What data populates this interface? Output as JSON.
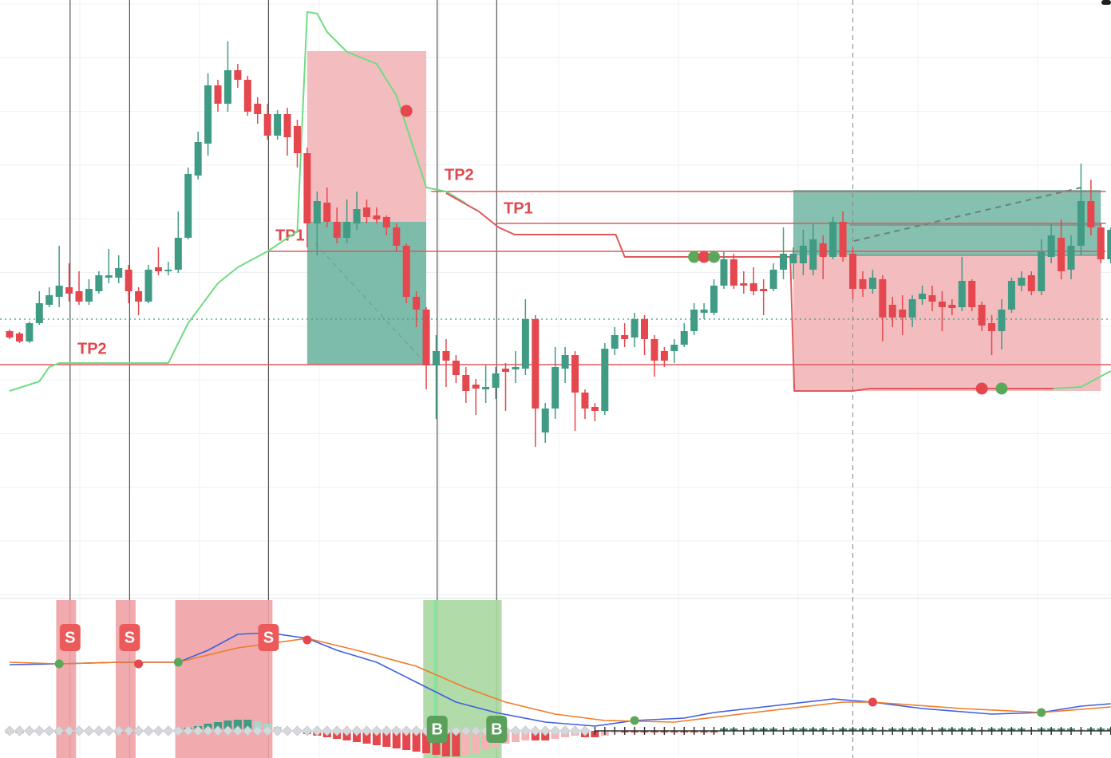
{
  "chart_data": {
    "type": "candlestick",
    "up_color": "#3f9b84",
    "down_color": "#e4474d",
    "ylim": [
      0,
      750
    ],
    "open": [
      335,
      332,
      322,
      345,
      368,
      378,
      390,
      385,
      372,
      385,
      402,
      402,
      412,
      385,
      372,
      415,
      410,
      412,
      452,
      530,
      570,
      643,
      620,
      662,
      650,
      620,
      607,
      580,
      607,
      592,
      558,
      470,
      496,
      472,
      452,
      470,
      490,
      480,
      478,
      465,
      442,
      378,
      362,
      292,
      310,
      298,
      280,
      268,
      262,
      264,
      288,
      287,
      288,
      350,
      208,
      238,
      288,
      305,
      258,
      240,
      235,
      313,
      330,
      327,
      350,
      325,
      310,
      310,
      318,
      335,
      358,
      358,
      392,
      425,
      395,
      395,
      388,
      388,
      412,
      420,
      420,
      412,
      445,
      428,
      472,
      432,
      400,
      388,
      400,
      368,
      362,
      352,
      375,
      380,
      372,
      368,
      365,
      398,
      368,
      345,
      335,
      362,
      392,
      405,
      385,
      428,
      452,
      412,
      442,
      498,
      465,
      425
    ],
    "high": [
      337,
      334,
      347,
      385,
      390,
      442,
      420,
      410,
      400,
      410,
      438,
      430,
      418,
      390,
      418,
      440,
      422,
      485,
      540,
      585,
      658,
      650,
      698,
      670,
      655,
      628,
      620,
      612,
      615,
      600,
      565,
      510,
      515,
      490,
      500,
      510,
      500,
      490,
      480,
      470,
      445,
      385,
      365,
      330,
      325,
      305,
      290,
      275,
      292,
      290,
      295,
      310,
      375,
      355,
      245,
      315,
      315,
      310,
      262,
      245,
      320,
      340,
      345,
      358,
      355,
      330,
      315,
      325,
      345,
      370,
      370,
      400,
      435,
      432,
      410,
      415,
      400,
      420,
      465,
      440,
      462,
      470,
      455,
      478,
      485,
      440,
      410,
      412,
      405,
      378,
      380,
      380,
      392,
      392,
      385,
      375,
      428,
      400,
      372,
      355,
      375,
      402,
      410,
      410,
      450,
      470,
      475,
      455,
      545,
      525,
      470,
      465
    ],
    "low": [
      325,
      320,
      320,
      343,
      365,
      365,
      372,
      368,
      368,
      382,
      395,
      395,
      370,
      355,
      370,
      405,
      405,
      408,
      450,
      525,
      555,
      610,
      610,
      640,
      605,
      595,
      575,
      575,
      555,
      540,
      440,
      430,
      465,
      445,
      445,
      462,
      470,
      470,
      455,
      435,
      370,
      340,
      262,
      225,
      265,
      270,
      245,
      230,
      245,
      250,
      235,
      270,
      280,
      190,
      195,
      225,
      270,
      210,
      225,
      222,
      230,
      305,
      315,
      315,
      305,
      278,
      290,
      295,
      315,
      330,
      350,
      355,
      388,
      388,
      382,
      380,
      355,
      385,
      400,
      400,
      405,
      405,
      400,
      425,
      422,
      375,
      378,
      382,
      322,
      340,
      330,
      340,
      368,
      360,
      335,
      355,
      360,
      360,
      335,
      305,
      312,
      358,
      385,
      380,
      380,
      420,
      400,
      400,
      430,
      455,
      420,
      420
    ],
    "close": [
      327,
      322,
      345,
      370,
      380,
      392,
      382,
      372,
      388,
      405,
      405,
      414,
      385,
      372,
      412,
      410,
      412,
      452,
      532,
      572,
      643,
      620,
      662,
      650,
      610,
      607,
      580,
      607,
      578,
      558,
      470,
      498,
      472,
      452,
      472,
      488,
      478,
      475,
      465,
      442,
      378,
      362,
      292,
      310,
      298,
      280,
      260,
      263,
      265,
      282,
      284,
      290,
      350,
      238,
      238,
      290,
      305,
      258,
      238,
      235,
      313,
      330,
      325,
      350,
      325,
      298,
      298,
      318,
      335,
      362,
      362,
      392,
      425,
      392,
      392,
      385,
      385,
      412,
      432,
      432,
      442,
      450,
      428,
      472,
      428,
      388,
      388,
      402,
      352,
      352,
      352,
      375,
      382,
      372,
      365,
      364,
      398,
      365,
      342,
      335,
      362,
      398,
      402,
      385,
      435,
      455,
      410,
      442,
      498,
      465,
      425,
      462
    ],
    "trail": {
      "color": "#6fdc84",
      "x": [
        0,
        3,
        4,
        5,
        16,
        18,
        21,
        23,
        26,
        29,
        30,
        31,
        32,
        34,
        37,
        39,
        42,
        44,
        46,
        47,
        105,
        108,
        111
      ],
      "values": [
        260,
        272,
        290,
        295,
        295,
        345,
        395,
        415,
        435,
        460,
        735,
        733,
        710,
        685,
        670,
        630,
        515,
        510,
        495,
        null,
        263,
        265,
        285
      ]
    },
    "stop_line": {
      "color": "#e0585a",
      "x": [
        44,
        47.3,
        49.3,
        50.9,
        61.1,
        62,
        78.7,
        79.1,
        85,
        86.7,
        105.2
      ],
      "values": [
        508,
        485,
        465,
        456,
        456,
        428,
        428,
        260,
        260,
        263,
        263
      ]
    },
    "levels": [
      {
        "label": "TP2",
        "value": 510,
        "from": 42.5,
        "to": 110.5
      },
      {
        "label": "TP1",
        "value": 470,
        "from": 49,
        "to": 110.5
      },
      {
        "label": "TP1",
        "value": 435,
        "from": 26,
        "to": 110.5
      },
      {
        "label": "TP2",
        "value": 293,
        "from": -1,
        "to": 112
      }
    ],
    "zones": [
      {
        "color": "#f2b5b8",
        "top": 686,
        "bottom": 472,
        "from": 30,
        "to": 42
      },
      {
        "color": "#6fb5a2",
        "top": 472,
        "bottom": 293,
        "from": 30,
        "to": 42
      },
      {
        "color": "#78b9a9",
        "top": 512,
        "bottom": 430,
        "from": 79,
        "to": 110
      },
      {
        "color": "#f2b5b8",
        "top": 430,
        "bottom": 260,
        "from": 79,
        "to": 110
      }
    ],
    "reference_line": {
      "value": 350,
      "color": "#3f9b84"
    },
    "cursor_index": 85,
    "markers": [
      {
        "index": 40,
        "value": 611,
        "color": "#e4474d"
      },
      {
        "index": 69,
        "value": 428,
        "color": "#5aa85a"
      },
      {
        "index": 70,
        "value": 428,
        "color": "#e4474d"
      },
      {
        "index": 71,
        "value": 428,
        "color": "#5aa85a"
      },
      {
        "index": 98,
        "value": 263,
        "color": "#e4474d"
      },
      {
        "index": 100,
        "value": 263,
        "color": "#5aa85a"
      }
    ],
    "signals": [
      {
        "label": "S",
        "index": 6.1,
        "color": "#ec5b5b"
      },
      {
        "label": "S",
        "index": 12.1,
        "color": "#ec5b5b"
      },
      {
        "label": "S",
        "index": 26.1,
        "color": "#ec5b5b"
      },
      {
        "label": "B",
        "index": 43.1,
        "color": "#5aa05a"
      },
      {
        "label": "B",
        "index": 49.1,
        "color": "#5aa05a"
      }
    ],
    "oscillator": {
      "ylim": [
        -34,
        164
      ],
      "lines": [
        {
          "color": "#3f5fe0",
          "x": [
            0,
            5,
            11,
            17,
            20,
            23,
            26,
            30,
            33,
            37,
            41,
            45,
            49,
            54,
            59,
            63,
            68,
            71,
            76,
            83,
            87,
            92,
            99,
            104,
            108,
            111
          ],
          "values": [
            83,
            84,
            86,
            86,
            101,
            121,
            123,
            116,
            101,
            86,
            61,
            36,
            23,
            11,
            6,
            13,
            16,
            23,
            30,
            40,
            36,
            28,
            21,
            23,
            31,
            34
          ]
        },
        {
          "color": "#f07c2a",
          "x": [
            0,
            5,
            11,
            17,
            23,
            30,
            35,
            41,
            46,
            50,
            55,
            60,
            67,
            75,
            84,
            87,
            96,
            104,
            111
          ],
          "values": [
            86,
            84,
            86,
            86,
            104,
            116,
            101,
            81,
            54,
            36,
            21,
            13,
            11,
            23,
            36,
            36,
            28,
            23,
            30
          ]
        }
      ],
      "histogram": [
        -3,
        -3,
        -2,
        -2,
        -2,
        -3,
        -3,
        -2,
        -2,
        -2,
        -2,
        -3,
        -3,
        -2,
        -2,
        -1,
        -1,
        2,
        4,
        6,
        9,
        11,
        13,
        14,
        14,
        12,
        9,
        5,
        2,
        -2,
        -4,
        -6,
        -8,
        -10,
        -12,
        -14,
        -16,
        -18,
        -20,
        -22,
        -24,
        -26,
        -28,
        -30,
        -32,
        -32,
        -30,
        -28,
        -24,
        -20,
        -16,
        -14,
        -12,
        -12,
        -12,
        -10,
        -8,
        -6,
        -8,
        -8,
        -6,
        -2,
        -2,
        -2,
        -2,
        -2,
        -2,
        -2,
        -2,
        -2,
        -2,
        -2,
        3,
        3,
        2,
        3,
        3,
        3,
        2,
        3,
        3,
        3,
        3,
        2,
        3,
        3,
        3,
        3,
        2,
        3,
        3,
        3,
        3,
        2,
        3,
        3,
        3,
        3,
        2,
        3,
        3,
        3,
        3,
        2,
        3,
        3,
        3,
        3,
        2,
        3,
        3,
        3
      ],
      "hist_colors": [
        "#3f9b84",
        "#a9d6ca",
        "#e4474d",
        "#f6b3b6"
      ],
      "bands": [
        {
          "from": 4.7,
          "to": 6.7,
          "color": "#f0a2a5"
        },
        {
          "from": 10.7,
          "to": 12.7,
          "color": "#f0a2a5"
        },
        {
          "from": 16.7,
          "to": 26.5,
          "color": "#f0a2a5"
        },
        {
          "from": 41.7,
          "to": 49.6,
          "color": "#a9d7a0"
        }
      ],
      "markers": [
        {
          "index": 5,
          "value": 84,
          "color": "#5aa85a"
        },
        {
          "index": 13,
          "value": 84,
          "color": "#e4474d"
        },
        {
          "index": 17,
          "value": 86,
          "color": "#5aa85a"
        },
        {
          "index": 30,
          "value": 114,
          "color": "#e4474d"
        },
        {
          "index": 63,
          "value": 13,
          "color": "#5aa85a"
        },
        {
          "index": 87,
          "value": 36,
          "color": "#e4474d"
        },
        {
          "index": 104,
          "value": 23,
          "color": "#5aa85a"
        }
      ]
    }
  }
}
